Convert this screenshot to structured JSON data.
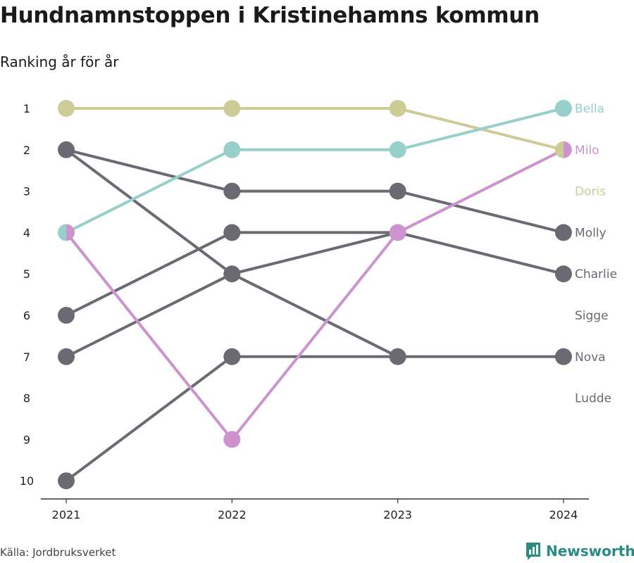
{
  "title": "Hundnamnstoppen i Kristinehamns kommun",
  "subtitle": "Ranking år för år",
  "source": "Källa: Jordbruksverket",
  "brand": "Newsworthy",
  "brand_icon": "bar-chart-icon",
  "colors": {
    "gray": "#6b6a72",
    "olive": "#cdcb96",
    "teal": "#97cfcc",
    "pink": "#cd93cf",
    "brand": "#2a8a85"
  },
  "chart_data": {
    "type": "line",
    "x": [
      "2021",
      "2022",
      "2023",
      "2024"
    ],
    "y_ticks": [
      "1",
      "2",
      "3",
      "4",
      "5",
      "6",
      "7",
      "8",
      "9",
      "10"
    ],
    "ylim": [
      1,
      10
    ],
    "y_inverted": true,
    "series": [
      {
        "name": "Doris",
        "color": "#cdcb96",
        "values": [
          1,
          1,
          1,
          2
        ]
      },
      {
        "name": "Bella",
        "color": "#97cfcc",
        "values": [
          4,
          2,
          2,
          1
        ]
      },
      {
        "name": "Milo",
        "color": "#cd93cf",
        "values": [
          4,
          9,
          4,
          2
        ]
      },
      {
        "name": "Molly",
        "color": "#6b6a72",
        "values": [
          2,
          3,
          3,
          4
        ]
      },
      {
        "name": "Charlie",
        "color": "#6b6a72",
        "values": [
          7,
          5,
          4,
          5
        ]
      },
      {
        "name": "Sigge",
        "color": "#6b6a72",
        "values": [
          6,
          4,
          4,
          null
        ]
      },
      {
        "name": "Nova",
        "color": "#6b6a72",
        "values": [
          2,
          5,
          7,
          7
        ]
      },
      {
        "name": "Ludde",
        "color": "#6b6a72",
        "values": [
          10,
          7,
          7,
          null
        ]
      }
    ],
    "end_labels": [
      {
        "name": "Bella",
        "rank": 1,
        "color": "#97cfcc"
      },
      {
        "name": "Milo",
        "rank": 2,
        "color": "#cd93cf"
      },
      {
        "name": "Doris",
        "rank": 3,
        "color": "#cdcb96"
      },
      {
        "name": "Molly",
        "rank": 4,
        "color": "#6b6a72"
      },
      {
        "name": "Charlie",
        "rank": 5,
        "color": "#6b6a72"
      },
      {
        "name": "Sigge",
        "rank": 6,
        "color": "#6b6a72"
      },
      {
        "name": "Nova",
        "rank": 7,
        "color": "#6b6a72"
      },
      {
        "name": "Ludde",
        "rank": 8,
        "color": "#6b6a72"
      }
    ]
  }
}
